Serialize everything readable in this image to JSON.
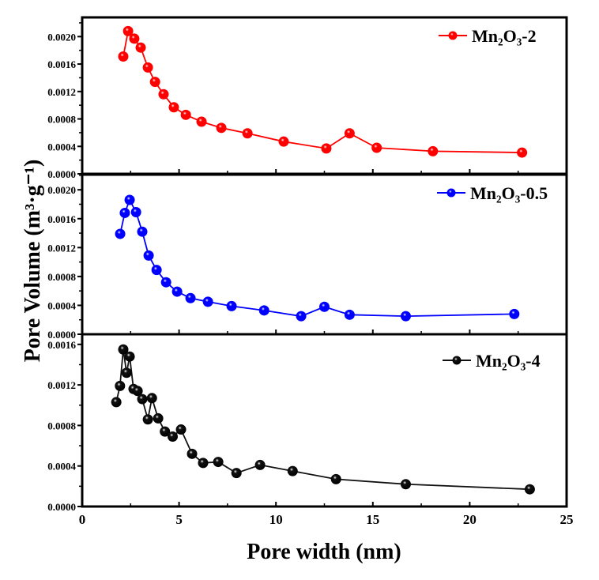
{
  "chart_data": {
    "type": "line",
    "xlabel": "Pore width (nm)",
    "ylabel": "Pore Volume (m³·g⁻¹)",
    "xlim": [
      0,
      25
    ],
    "x_ticks": [
      "0",
      "5",
      "10",
      "15",
      "20",
      "25"
    ],
    "x_tick_values": [
      0,
      5,
      10,
      15,
      20,
      25
    ],
    "legend_placement": "top-right",
    "panels": [
      {
        "name": "Mn₂O₃-2",
        "color": "#ff0000",
        "ylim": [
          0,
          0.00228
        ],
        "y_ticks": [
          "0.0000",
          "0.0004",
          "0.0008",
          "0.0012",
          "0.0016",
          "0.0020"
        ],
        "y_tick_values": [
          0,
          0.0004,
          0.0008,
          0.0012,
          0.0016,
          0.002
        ],
        "x": [
          2.12,
          2.37,
          2.69,
          3.02,
          3.39,
          3.76,
          4.2,
          4.73,
          5.35,
          6.16,
          7.18,
          8.53,
          10.4,
          12.6,
          13.8,
          15.2,
          18.1,
          22.7
        ],
        "y": [
          0.00171,
          0.00208,
          0.00197,
          0.00184,
          0.00155,
          0.00134,
          0.00116,
          0.00097,
          0.00086,
          0.00076,
          0.00067,
          0.00059,
          0.00047,
          0.00037,
          0.00059,
          0.00038,
          0.00033,
          0.00031
        ]
      },
      {
        "name": "Mn₂O₃-0.5",
        "color": "#0000ff",
        "ylim": [
          0,
          0.00221
        ],
        "y_ticks": [
          "0.0000",
          "0.0004",
          "0.0008",
          "0.0012",
          "0.0016",
          "0.0020"
        ],
        "y_tick_values": [
          0,
          0.0004,
          0.0008,
          0.0012,
          0.0016,
          0.002
        ],
        "x": [
          1.96,
          2.2,
          2.45,
          2.78,
          3.1,
          3.43,
          3.84,
          4.33,
          4.9,
          5.59,
          6.49,
          7.71,
          9.39,
          11.3,
          12.5,
          13.8,
          16.7,
          22.3
        ],
        "y": [
          0.00139,
          0.00168,
          0.00186,
          0.00169,
          0.00142,
          0.00109,
          0.00089,
          0.00072,
          0.00059,
          0.0005,
          0.00045,
          0.00039,
          0.00033,
          0.00025,
          0.00038,
          0.00027,
          0.00025,
          0.00028
        ]
      },
      {
        "name": "Mn₂O₃-4",
        "color": "#111111",
        "ylim": [
          0,
          0.0017
        ],
        "y_ticks": [
          "0.0000",
          "0.0004",
          "0.0008",
          "0.0012",
          "0.0016"
        ],
        "y_tick_values": [
          0,
          0.0004,
          0.0008,
          0.0012,
          0.0016
        ],
        "x": [
          1.76,
          1.95,
          2.12,
          2.29,
          2.45,
          2.65,
          2.86,
          3.1,
          3.39,
          3.6,
          3.92,
          4.27,
          4.67,
          5.1,
          5.67,
          6.24,
          7.02,
          7.96,
          9.18,
          10.86,
          13.1,
          16.7,
          23.1
        ],
        "y": [
          0.00103,
          0.00119,
          0.00155,
          0.00132,
          0.00148,
          0.00116,
          0.00114,
          0.00106,
          0.00086,
          0.00107,
          0.00087,
          0.00074,
          0.00069,
          0.00076,
          0.00052,
          0.00043,
          0.00044,
          0.00033,
          0.00041,
          0.00035,
          0.00027,
          0.00022,
          0.00017
        ]
      }
    ]
  }
}
